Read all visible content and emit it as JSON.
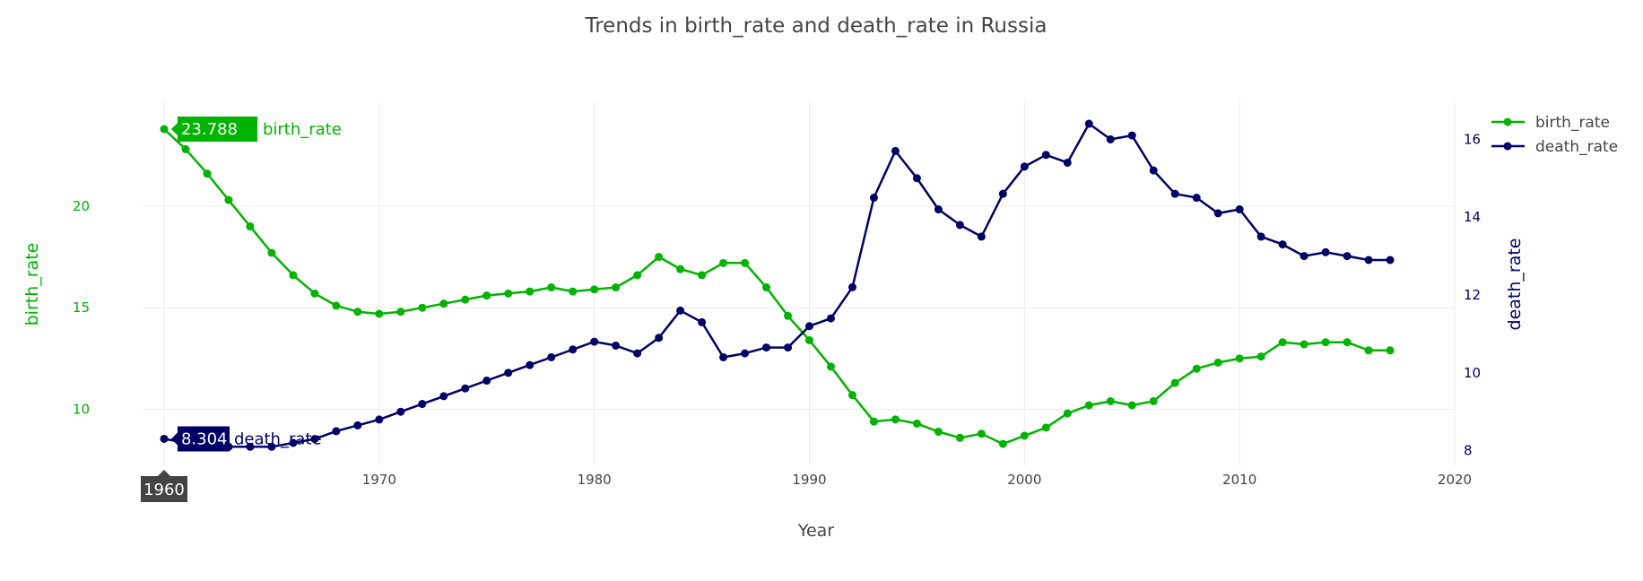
{
  "chart_data": {
    "type": "line",
    "title": "Trends in birth_rate and death_rate in Russia",
    "xlabel": "Year",
    "ylabel_left": "birth_rate",
    "ylabel_right": "death_rate",
    "xlim": [
      1959,
      2020
    ],
    "ylim_left": [
      7.2,
      25.2
    ],
    "ylim_right": [
      7.6,
      17.0
    ],
    "x_ticks": [
      1970,
      1980,
      1990,
      2000,
      2010,
      2020
    ],
    "y_ticks_left": [
      10,
      15,
      20
    ],
    "y_ticks_right": [
      8,
      10,
      12,
      14,
      16
    ],
    "grid": true,
    "legend_position": "top-right",
    "x": [
      1960,
      1961,
      1962,
      1963,
      1964,
      1965,
      1966,
      1967,
      1968,
      1969,
      1970,
      1971,
      1972,
      1973,
      1974,
      1975,
      1976,
      1977,
      1978,
      1979,
      1980,
      1981,
      1982,
      1983,
      1984,
      1985,
      1986,
      1987,
      1988,
      1989,
      1990,
      1991,
      1992,
      1993,
      1994,
      1995,
      1996,
      1997,
      1998,
      1999,
      2000,
      2001,
      2002,
      2003,
      2004,
      2005,
      2006,
      2007,
      2008,
      2009,
      2010,
      2011,
      2012,
      2013,
      2014,
      2015,
      2016,
      2017
    ],
    "series": [
      {
        "name": "birth_rate",
        "axis": "left",
        "color": "#00b300",
        "values": [
          23.788,
          22.8,
          21.6,
          20.3,
          19.0,
          17.7,
          16.6,
          15.7,
          15.1,
          14.8,
          14.7,
          14.8,
          15.0,
          15.2,
          15.4,
          15.6,
          15.7,
          15.8,
          16.0,
          15.8,
          15.9,
          16.0,
          16.6,
          17.5,
          16.9,
          16.6,
          17.2,
          17.2,
          16.0,
          14.6,
          13.4,
          12.1,
          10.7,
          9.4,
          9.5,
          9.3,
          8.9,
          8.6,
          8.8,
          8.3,
          8.7,
          9.1,
          9.8,
          10.2,
          10.4,
          10.2,
          10.4,
          11.3,
          12.0,
          12.3,
          12.5,
          12.6,
          13.3,
          13.2,
          13.3,
          13.3,
          12.9,
          12.9
        ]
      },
      {
        "name": "death_rate",
        "axis": "right",
        "color": "#000066",
        "values": [
          8.304,
          8.2,
          8.2,
          8.1,
          8.1,
          8.1,
          8.2,
          8.3,
          8.5,
          8.65,
          8.8,
          9.0,
          9.2,
          9.4,
          9.6,
          9.8,
          10.0,
          10.2,
          10.4,
          10.6,
          10.8,
          10.7,
          10.5,
          10.9,
          11.6,
          11.3,
          10.4,
          10.5,
          10.65,
          10.65,
          11.2,
          11.4,
          12.2,
          14.5,
          15.7,
          15.0,
          14.2,
          13.8,
          13.5,
          14.6,
          15.3,
          15.6,
          15.4,
          16.4,
          16.0,
          16.1,
          15.2,
          14.6,
          14.5,
          14.1,
          14.2,
          13.5,
          13.3,
          13.0,
          13.1,
          13.0,
          12.9,
          12.9
        ]
      }
    ],
    "hover": {
      "x_label": "1960",
      "birth_value": "23.788",
      "death_value": "8.304",
      "birth_name": "birth_rate",
      "death_name": "death_rate"
    }
  }
}
